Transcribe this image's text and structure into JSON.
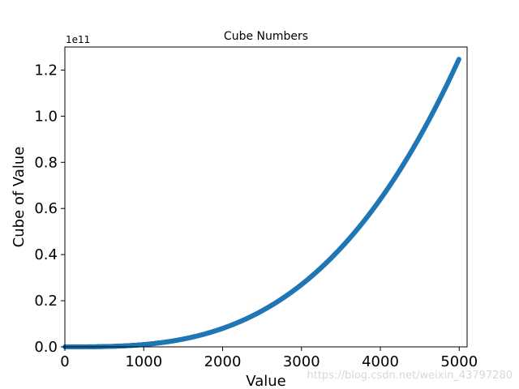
{
  "chart_data": {
    "type": "scatter",
    "title": "Cube Numbers",
    "xlabel": "Value",
    "ylabel": "Cube of Value",
    "y_offset_label": "1e11",
    "xlim": [
      0,
      5100
    ],
    "ylim": [
      0,
      1.3
    ],
    "x_ticks": [
      0,
      1000,
      2000,
      3000,
      4000,
      5000
    ],
    "x_tick_labels": [
      "0",
      "1000",
      "2000",
      "3000",
      "4000",
      "5000"
    ],
    "y_ticks": [
      0,
      0.2,
      0.4,
      0.6,
      0.8,
      1.0,
      1.2
    ],
    "y_tick_labels": [
      "0.0",
      "0.2",
      "0.4",
      "0.6",
      "0.8",
      "1.0",
      "1.2"
    ],
    "x_range": [
      1,
      5000
    ],
    "y_function": "x^3",
    "series": [
      {
        "color": "#1f77b4",
        "x": [
          1,
          500,
          1000,
          1500,
          2000,
          2500,
          3000,
          3500,
          4000,
          4500,
          5000
        ],
        "values": [
          1e-11,
          0.00125,
          0.01,
          0.03375,
          0.08,
          0.15625,
          0.27,
          0.42875,
          0.64,
          0.91125,
          1.25
        ]
      }
    ],
    "grid": false,
    "legend": "none"
  },
  "watermark": "https://blog.csdn.net/weixin_43797280"
}
